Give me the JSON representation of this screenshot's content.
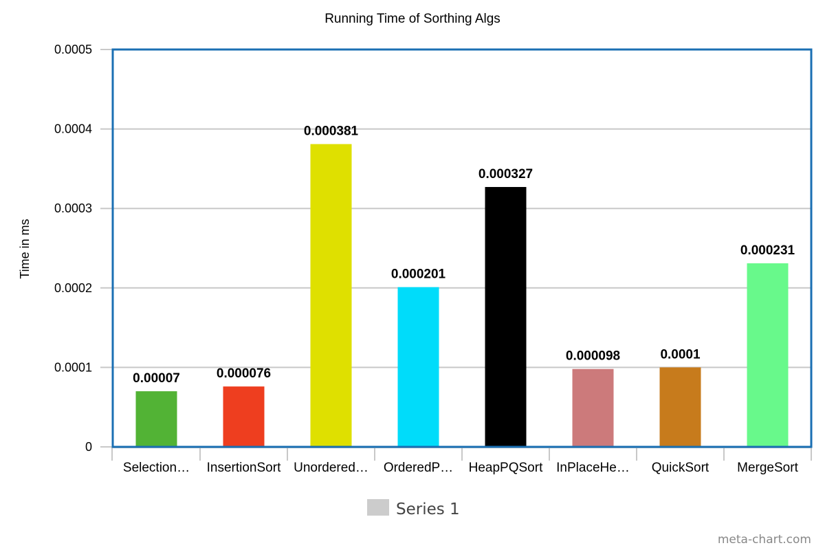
{
  "chart_data": {
    "type": "bar",
    "title": "Running Time of Sorthing Algs",
    "xlabel": "",
    "ylabel": "Time in ms",
    "ylim": [
      0,
      0.0005
    ],
    "yticks": [
      "0",
      "0.0001",
      "0.0002",
      "0.0003",
      "0.0004",
      "0.0005"
    ],
    "ytick_values": [
      0,
      0.0001,
      0.0002,
      0.0003,
      0.0004,
      0.0005
    ],
    "grid": true,
    "legend_position": "bottom-center",
    "categories": [
      "Selection…",
      "InsertionSort",
      "Unordered…",
      "OrderedP…",
      "HeapPQSort",
      "InPlaceHe…",
      "QuickSort",
      "MergeSort"
    ],
    "series": [
      {
        "name": "Series 1",
        "values": [
          7e-05,
          7.6e-05,
          0.000381,
          0.000201,
          0.000327,
          9.8e-05,
          0.0001,
          0.000231
        ],
        "data_labels": [
          "0.00007",
          "0.000076",
          "0.000381",
          "0.000201",
          "0.000327",
          "0.000098",
          "0.0001",
          "0.000231"
        ],
        "colors": [
          "#52b335",
          "#ee3e1f",
          "#dfe000",
          "#00dcfa",
          "#000000",
          "#cc7a7b",
          "#c77b1c",
          "#68f98b"
        ]
      }
    ],
    "legend_swatch_color": "#cccccc",
    "frame_color": "#1a6fb3",
    "watermark": "meta-chart.com"
  }
}
